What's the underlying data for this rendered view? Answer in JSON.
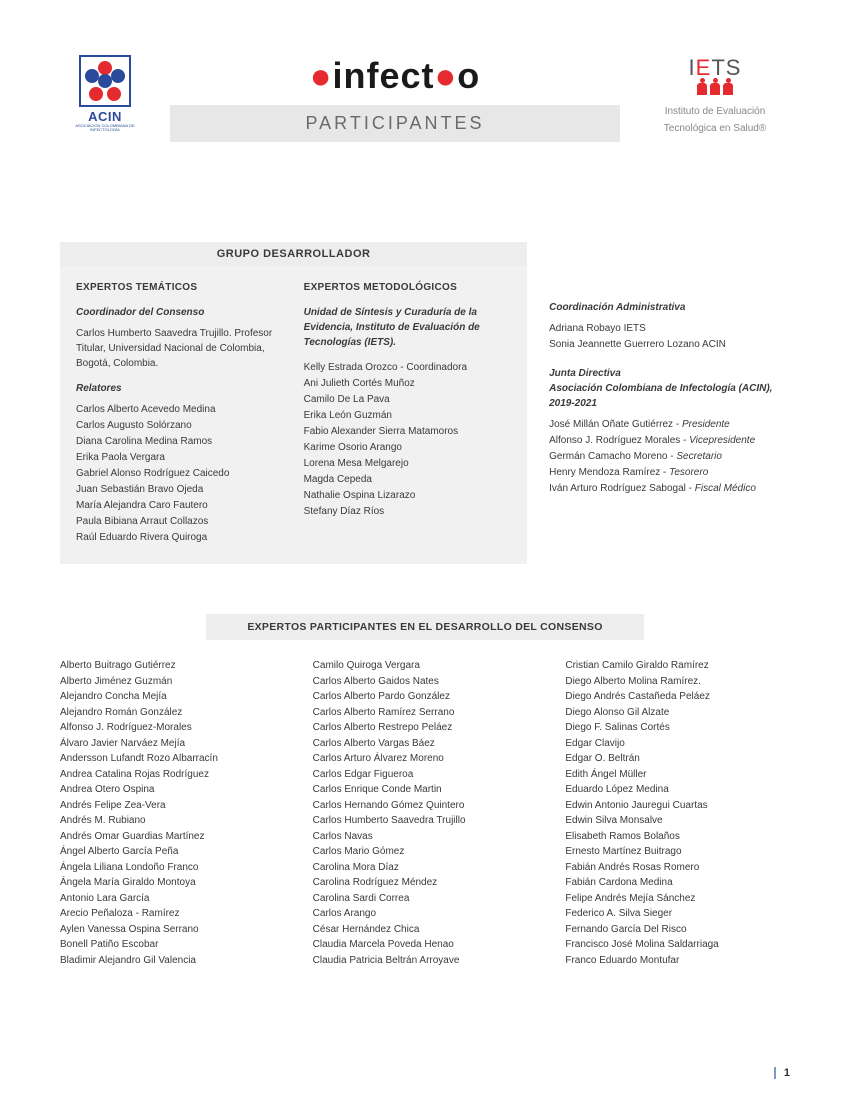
{
  "header": {
    "acin_label": "ACIN",
    "acin_sub": "ASOCIACIÓN COLOMBIANA DE INFECTOLOGÍA",
    "infectio_pre": "infect",
    "infectio_post": "o",
    "participantes": "PARTICIPANTES",
    "iets_label": "IETS",
    "iets_sub1": "Instituto de Evaluación",
    "iets_sub2": "Tecnológica en Salud®",
    "colors": {
      "acin_blue": "#2a4b9b",
      "acin_red": "#e52b2f",
      "bar_gray": "#e7e7e7",
      "box_gray": "#f1f1f1"
    }
  },
  "grupo": {
    "title": "GRUPO DESARROLLADOR",
    "tematicos": {
      "heading": "EXPERTOS TEMÁTICOS",
      "coord_head": "Coordinador del Consenso",
      "coord_text": "Carlos Humberto Saavedra Trujillo. Profesor Titular, Universidad Nacional de Colombia, Bogotá, Colombia.",
      "relatores_head": "Relatores",
      "relatores": [
        "Carlos Alberto Acevedo Medina",
        "Carlos Augusto Solórzano",
        "Diana Carolina Medina Ramos",
        "Erika Paola Vergara",
        "Gabriel Alonso Rodríguez Caicedo",
        "Juan Sebastián Bravo Ojeda",
        "María Alejandra Caro Fautero",
        "Paula Bibiana Arraut Collazos",
        "Raúl Eduardo Rivera Quiroga"
      ]
    },
    "metodologicos": {
      "heading": "EXPERTOS METODOLÓGICOS",
      "unit_head": "Unidad de Síntesis y Curaduría de la Evidencia, Instituto de Evaluación de Tecnologías (IETS).",
      "members": [
        "Kelly Estrada Orozco - Coordinadora",
        "Ani Julieth Cortés Muñoz",
        "Camilo De La Pava",
        "Erika León Guzmán",
        "Fabio Alexander Sierra Matamoros",
        "Karime Osorio Arango",
        "Lorena Mesa Melgarejo",
        "Magda Cepeda",
        "Nathalie Ospina Lizarazo",
        "Stefany Díaz Ríos"
      ]
    }
  },
  "admin": {
    "coord_head": "Coordinación Administrativa",
    "coord_members": [
      "Adriana Robayo IETS",
      "Sonia Jeannette Guerrero Lozano ACIN"
    ],
    "junta_head1": "Junta Directiva",
    "junta_head2": "Asociación Colombiana de Infectología (ACIN), 2019-2021",
    "junta_members": [
      {
        "name": "José Millán Oñate Gutiérrez",
        "role": "Presidente"
      },
      {
        "name": "Alfonso J. Rodríguez Morales",
        "role": "Vicepresidente"
      },
      {
        "name": "Germán Camacho Moreno",
        "role": "Secretario"
      },
      {
        "name": "Henry Mendoza Ramírez",
        "role": "Tesorero"
      },
      {
        "name": "Iván Arturo Rodríguez Sabogal",
        "role": "Fiscal Médico"
      }
    ]
  },
  "expertos": {
    "title": "EXPERTOS PARTICIPANTES EN EL DESARROLLO DEL CONSENSO",
    "col1": [
      "Alberto Buitrago Gutiérrez",
      "Alberto Jiménez Guzmán",
      "Alejandro Concha Mejía",
      "Alejandro Román González",
      "Alfonso J. Rodríguez-Morales",
      "Álvaro Javier Narváez Mejía",
      "Andersson Lufandt Rozo Albarracín",
      "Andrea Catalina Rojas Rodríguez",
      "Andrea Otero Ospina",
      "Andrés Felipe Zea-Vera",
      "Andrés M. Rubiano",
      "Andrés Omar Guardias Martínez",
      "Ángel Alberto García Peña",
      "Ángela Liliana Londoño Franco",
      "Ángela María Giraldo Montoya",
      "Antonio Lara García",
      "Arecio Peñaloza - Ramírez",
      "Aylen Vanessa Ospina Serrano",
      "Bonell Patiño Escobar",
      "Bladimir Alejandro Gil Valencia"
    ],
    "col2": [
      "Camilo Quiroga Vergara",
      "Carlos Alberto Gaidos Nates",
      "Carlos Alberto Pardo González",
      "Carlos Alberto Ramírez Serrano",
      "Carlos Alberto Restrepo Peláez",
      "Carlos Alberto Vargas Báez",
      "Carlos Arturo Álvarez Moreno",
      "Carlos Edgar Figueroa",
      "Carlos Enrique Conde Martin",
      "Carlos Hernando Gómez Quintero",
      "Carlos Humberto Saavedra Trujillo",
      "Carlos Navas",
      "Carlos Mario Gómez",
      "Carolina Mora Díaz",
      "Carolina Rodríguez Méndez",
      "Carolina Sardi Correa",
      "Carlos Arango",
      "César Hernández Chica",
      "Claudia Marcela Poveda Henao",
      "Claudia Patricia Beltrán Arroyave"
    ],
    "col3": [
      "Cristian Camilo Giraldo Ramírez",
      "Diego Alberto Molina Ramírez.",
      "Diego Andrés Castañeda Peláez",
      "Diego Alonso Gil Alzate",
      "Diego F. Salinas Cortés",
      "Edgar Clavijo",
      "Edgar O. Beltrán",
      "Edith Ángel Müller",
      "Eduardo López Medina",
      "Edwin Antonio Jauregui Cuartas",
      "Edwin Silva Monsalve",
      "Elisabeth Ramos Bolaños",
      "Ernesto Martínez Buitrago",
      "Fabián Andrés Rosas Romero",
      "Fabián Cardona Medina",
      "Felipe Andrés Mejía Sánchez",
      "Federico A. Silva Sieger",
      "Fernando García Del Risco",
      "Francisco José Molina Saldarriaga",
      "Franco Eduardo Montufar"
    ]
  },
  "page_number": "1"
}
